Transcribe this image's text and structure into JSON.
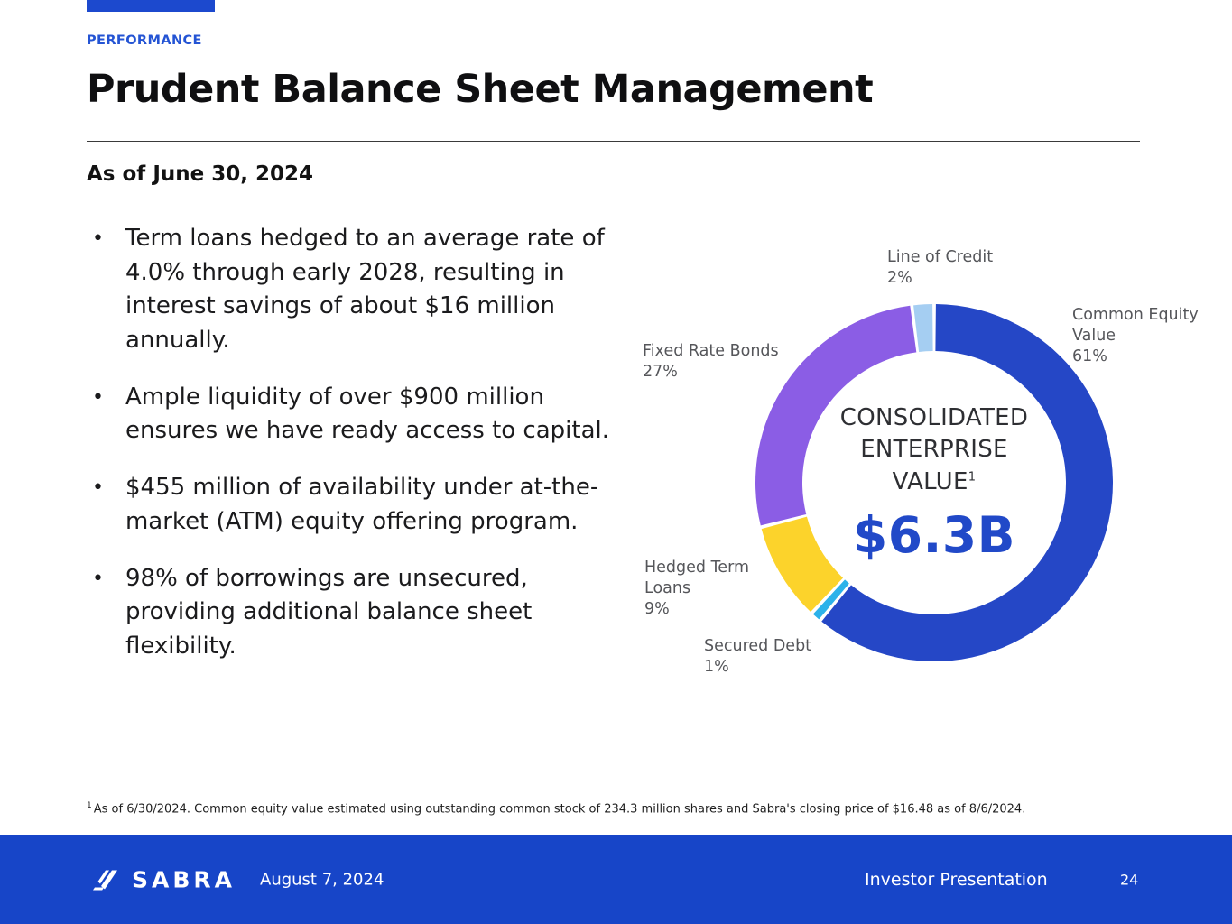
{
  "eyebrow": "PERFORMANCE",
  "title": "Prudent Balance Sheet Management",
  "as_of": "As of June 30, 2024",
  "bullets": [
    "Term loans hedged to an average rate of 4.0% through early 2028, resulting in interest savings of about $16 million annually.",
    "Ample liquidity of over $900 million ensures we have ready access to capital.",
    "$455 million of availability under at-the-market (ATM) equity offering program.",
    "98% of borrowings are unsecured, providing additional balance sheet flexibility."
  ],
  "chart_data": {
    "type": "pie",
    "subtype": "donut",
    "title": "Consolidated Enterprise Value",
    "center_label_lines": [
      "CONSOLIDATED",
      "ENTERPRISE",
      "VALUE"
    ],
    "center_label_superscript": "1",
    "center_value": "$6.3B",
    "direction": "clockwise",
    "start_angle_deg_from_top": 0,
    "legend_position": "labels-around-donut",
    "segments": [
      {
        "id": "common-equity-value",
        "label": "Common Equity Value",
        "display_lines": [
          "Common Equity",
          "Value"
        ],
        "pct_text": "61%",
        "value": 61,
        "color": "#2547c6"
      },
      {
        "id": "secured-debt",
        "label": "Secured Debt",
        "display_lines": [
          "Secured Debt"
        ],
        "pct_text": "1%",
        "value": 1,
        "color": "#2cb2ea"
      },
      {
        "id": "hedged-term-loans",
        "label": "Hedged Term Loans",
        "display_lines": [
          "Hedged Term",
          "Loans"
        ],
        "pct_text": "9%",
        "value": 9,
        "color": "#fcd32b"
      },
      {
        "id": "fixed-rate-bonds",
        "label": "Fixed Rate Bonds",
        "display_lines": [
          "Fixed Rate Bonds"
        ],
        "pct_text": "27%",
        "value": 27,
        "color": "#8b5de5"
      },
      {
        "id": "line-of-credit",
        "label": "Line of Credit",
        "display_lines": [
          "Line of Credit"
        ],
        "pct_text": "2%",
        "value": 2,
        "color": "#a5cef2"
      }
    ]
  },
  "footnote": {
    "marker": "1",
    "text": "As of 6/30/2024. Common equity value estimated using outstanding common stock of 234.3 million shares and Sabra's closing price of $16.48 as of 8/6/2024."
  },
  "footer": {
    "logo_text": "SABRA",
    "date": "August 7, 2024",
    "label": "Investor Presentation",
    "page_number": "24"
  },
  "colors": {
    "accent_blue": "#1c49ce",
    "eyebrow_blue": "#2454d4",
    "footer_blue": "#1745c8",
    "center_value_blue": "#2149c8",
    "label_gray": "#55565a"
  }
}
